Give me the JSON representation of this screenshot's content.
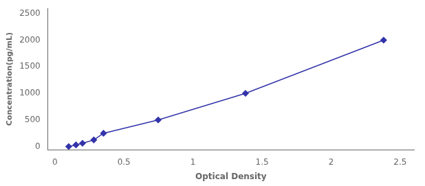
{
  "chart_data": {
    "type": "line",
    "x": [
      0.1,
      0.153,
      0.2,
      0.282,
      0.352,
      0.748,
      1.38,
      2.38
    ],
    "values": [
      0,
      31.25,
      62.5,
      125,
      250,
      500,
      1000,
      2000
    ],
    "color": "#3333aa",
    "marker": "diamond",
    "xlabel": "Optical Density",
    "ylabel": "Concentration(pg/mL)",
    "xlim": [
      -0.05,
      2.6
    ],
    "ylim": [
      -60,
      2600
    ],
    "xticks": [
      0,
      0.5,
      1,
      1.5,
      2,
      2.5
    ],
    "yticks": [
      0,
      500,
      1000,
      1500,
      2000,
      2500
    ],
    "grid": false
  }
}
